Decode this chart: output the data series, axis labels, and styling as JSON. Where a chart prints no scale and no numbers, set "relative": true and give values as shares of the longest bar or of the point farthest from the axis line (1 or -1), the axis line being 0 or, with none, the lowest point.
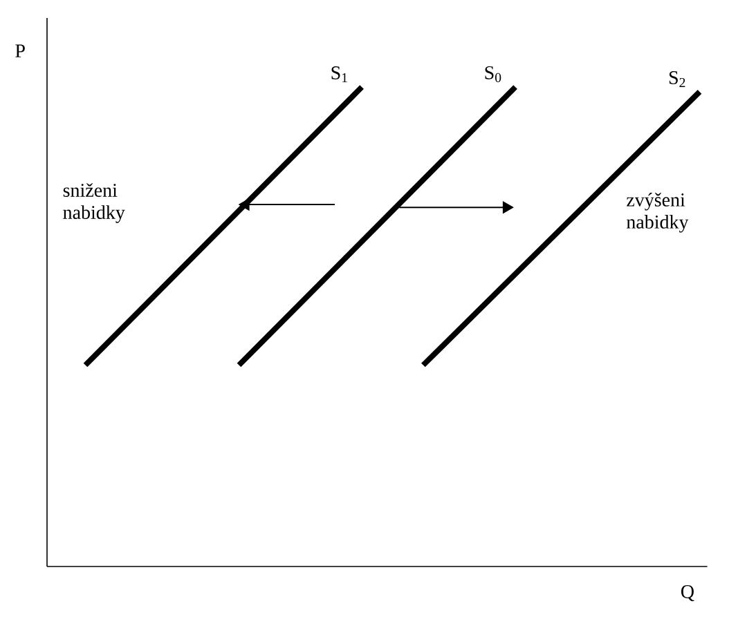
{
  "chart_data": {
    "type": "line",
    "relative": true,
    "xlabel": "Q",
    "ylabel": "P",
    "marker": "none",
    "line_style": "solid",
    "categories": [
      null,
      null,
      null,
      null,
      null,
      null,
      null,
      null,
      null,
      null,
      null,
      null,
      null,
      null,
      null,
      null,
      null,
      null,
      null,
      null,
      null,
      null,
      null,
      null,
      null,
      null,
      null,
      null,
      null,
      null,
      null,
      null,
      null,
      null,
      null,
      null,
      null,
      null,
      null,
      null,
      null,
      null,
      null
    ],
    "series": [
      {
        "name": "S$_{1}$",
        "color": "#000000",
        "values": [
          null,
          null,
          0.42,
          null,
          null,
          null,
          null,
          null,
          null,
          null,
          null,
          null,
          null,
          null,
          null,
          null,
          null,
          null,
          null,
          null,
          1.0,
          null,
          null,
          null,
          null,
          null,
          null,
          null,
          null,
          null,
          null,
          null,
          null,
          null,
          null,
          null,
          null,
          null,
          null,
          null,
          null,
          null,
          null
        ]
      },
      {
        "name": "S$_{0}$",
        "color": "#000000",
        "values": [
          null,
          null,
          null,
          null,
          null,
          null,
          null,
          null,
          null,
          null,
          null,
          null,
          0.42,
          null,
          null,
          null,
          null,
          null,
          null,
          null,
          null,
          null,
          null,
          null,
          null,
          null,
          null,
          null,
          null,
          null,
          1.0,
          null,
          null,
          null,
          null,
          null,
          null,
          null,
          null,
          null,
          null,
          null,
          null
        ]
      },
      {
        "name": "S$_{2}$",
        "color": "#000000",
        "values": [
          null,
          null,
          null,
          null,
          null,
          null,
          null,
          null,
          null,
          null,
          null,
          null,
          null,
          null,
          null,
          null,
          null,
          null,
          null,
          null,
          null,
          null,
          null,
          null,
          0.42,
          null,
          null,
          null,
          null,
          null,
          null,
          null,
          null,
          null,
          null,
          null,
          null,
          null,
          null,
          null,
          null,
          null,
          0.99
        ]
      }
    ],
    "annotations": [
      "sniženi nabidky",
      "zvýšeni nabidky"
    ]
  }
}
